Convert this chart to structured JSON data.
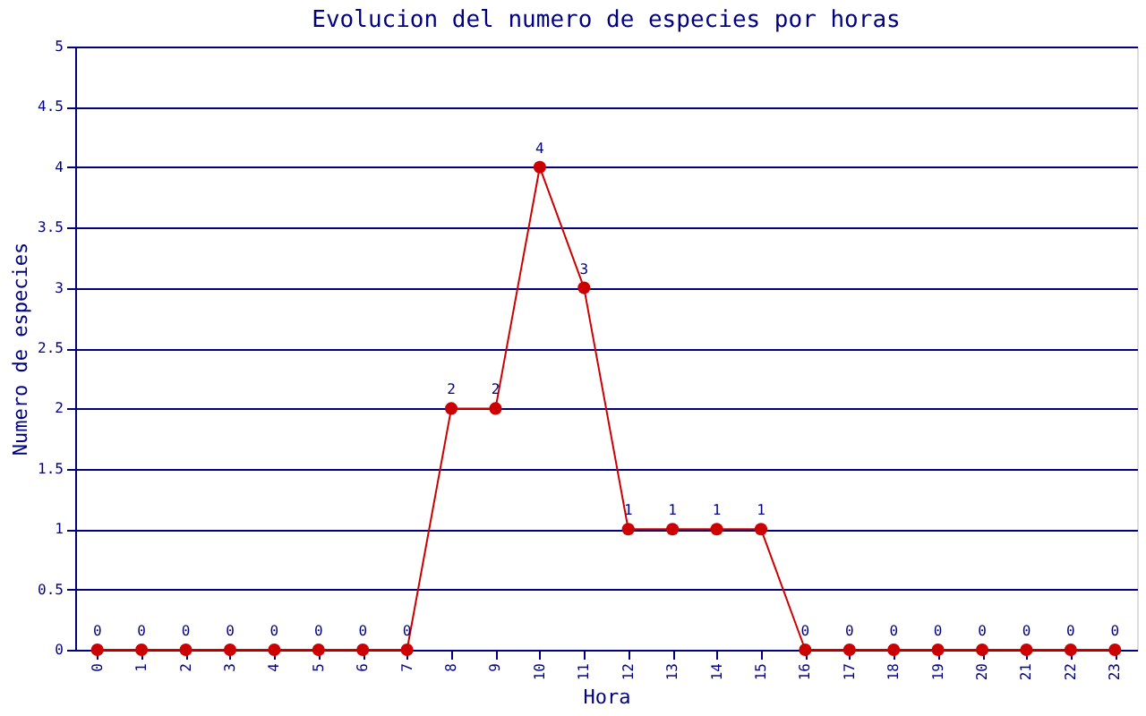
{
  "chart_data": {
    "type": "line",
    "title": "Evolucion del numero de especies por horas",
    "xlabel": "Hora",
    "ylabel": "Numero de especies",
    "categories": [
      "0",
      "1",
      "2",
      "3",
      "4",
      "5",
      "6",
      "7",
      "8",
      "9",
      "10",
      "11",
      "12",
      "13",
      "14",
      "15",
      "16",
      "17",
      "18",
      "19",
      "20",
      "21",
      "22",
      "23"
    ],
    "series": [
      {
        "color": "#cc0000",
        "values": [
          0,
          0,
          0,
          0,
          0,
          0,
          0,
          0,
          2,
          2,
          4,
          3,
          1,
          1,
          1,
          1,
          0,
          0,
          0,
          0,
          0,
          0,
          0,
          0
        ]
      }
    ],
    "ylim": [
      0,
      5
    ],
    "yticks": [
      0,
      0.5,
      1,
      1.5,
      2,
      2.5,
      3,
      3.5,
      4,
      4.5,
      5
    ],
    "grid": "y",
    "marker": "circle",
    "line_style": "solid",
    "data_labels": true
  }
}
